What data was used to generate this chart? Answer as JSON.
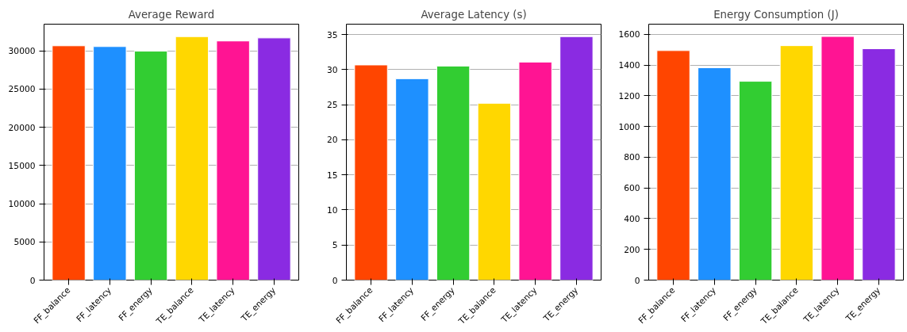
{
  "chart_data": [
    {
      "type": "bar",
      "title": "Average Reward",
      "categories": [
        "FF_balance",
        "FF_latency",
        "FF_energy",
        "TE_balance",
        "TE_latency",
        "TE_energy"
      ],
      "values": [
        30670,
        30570,
        29970,
        31870,
        31300,
        31700
      ],
      "colors": [
        "#ff4500",
        "#1e90ff",
        "#32cd32",
        "#ffd700",
        "#ff1493",
        "#8a2be2"
      ],
      "ylim": [
        0,
        33500
      ],
      "yticks": [
        0,
        5000,
        10000,
        15000,
        20000,
        25000,
        30000
      ],
      "grid": "y"
    },
    {
      "type": "bar",
      "title": "Average Latency (s)",
      "categories": [
        "FF_balance",
        "FF_latency",
        "FF_energy",
        "TE_balance",
        "TE_latency",
        "TE_energy"
      ],
      "values": [
        30.66,
        28.7,
        30.5,
        25.2,
        31.07,
        34.7
      ],
      "colors": [
        "#ff4500",
        "#1e90ff",
        "#32cd32",
        "#ffd700",
        "#ff1493",
        "#8a2be2"
      ],
      "ylim": [
        0,
        36.47
      ],
      "yticks": [
        0,
        5,
        10,
        15,
        20,
        25,
        30,
        35
      ],
      "grid": "y"
    },
    {
      "type": "bar",
      "title": "Energy Consumption (J)",
      "categories": [
        "FF_balance",
        "FF_latency",
        "FF_energy",
        "TE_balance",
        "TE_latency",
        "TE_energy"
      ],
      "values": [
        1495,
        1383,
        1295,
        1527,
        1587,
        1507
      ],
      "colors": [
        "#ff4500",
        "#1e90ff",
        "#32cd32",
        "#ffd700",
        "#ff1493",
        "#8a2be2"
      ],
      "ylim": [
        0,
        1667
      ],
      "yticks": [
        0,
        200,
        400,
        600,
        800,
        1000,
        1200,
        1400,
        1600
      ],
      "grid": "y"
    }
  ]
}
